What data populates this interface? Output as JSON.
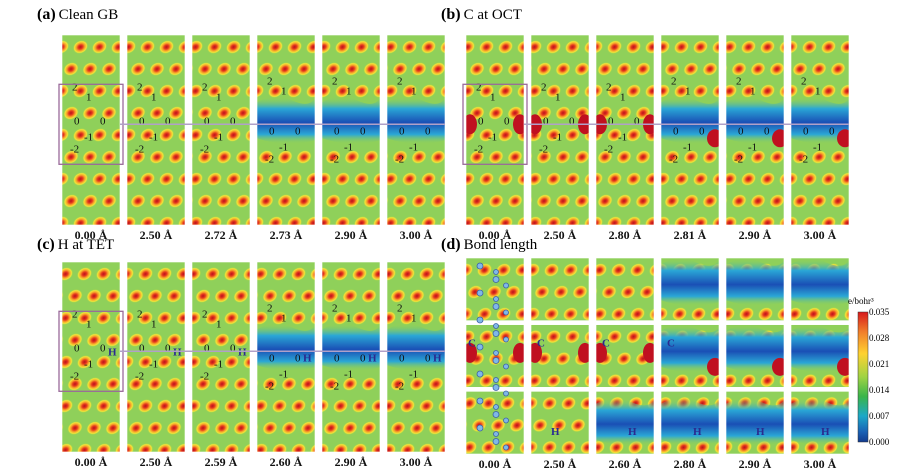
{
  "panels": [
    {
      "letter": "(a)",
      "title": "Clean GB",
      "captions": [
        "0.00 Å",
        "2.50 Å",
        "2.72 Å",
        "2.73 Å",
        "2.90 Å",
        "3.00 Å"
      ],
      "dopant": ""
    },
    {
      "letter": "(b)",
      "title": "C at OCT",
      "captions": [
        "0.00 Å",
        "2.50 Å",
        "2.80 Å",
        "2.81 Å",
        "2.90 Å",
        "3.00 Å"
      ],
      "dopant": "C"
    },
    {
      "letter": "(c)",
      "title": "H at TET",
      "captions": [
        "0.00 Å",
        "2.50 Å",
        "2.59 Å",
        "2.60 Å",
        "2.90 Å",
        "3.00 Å"
      ],
      "dopant": "H"
    },
    {
      "letter": "(d)",
      "title": "Bond length",
      "captions": [
        "0.00 Å",
        "2.50 Å",
        "2.60 Å",
        "2.80 Å",
        "2.90 Å",
        "3.00 Å"
      ],
      "dopant": ""
    }
  ],
  "atom_labels": [
    "2",
    "1",
    "0",
    "0",
    "-1",
    "-2"
  ],
  "bond_labels": {
    "c": "C",
    "h": "H"
  },
  "colorbar": {
    "title": "e/bohr³",
    "ticks": [
      "0.035",
      "0.028",
      "0.021",
      "0.014",
      "0.007",
      "0.000"
    ],
    "colors": [
      "#d7191c",
      "#f07c2a",
      "#ffd230",
      "#9fd343",
      "#39b54a",
      "#1ca8c8",
      "#1a62b5",
      "#123a8e"
    ]
  }
}
